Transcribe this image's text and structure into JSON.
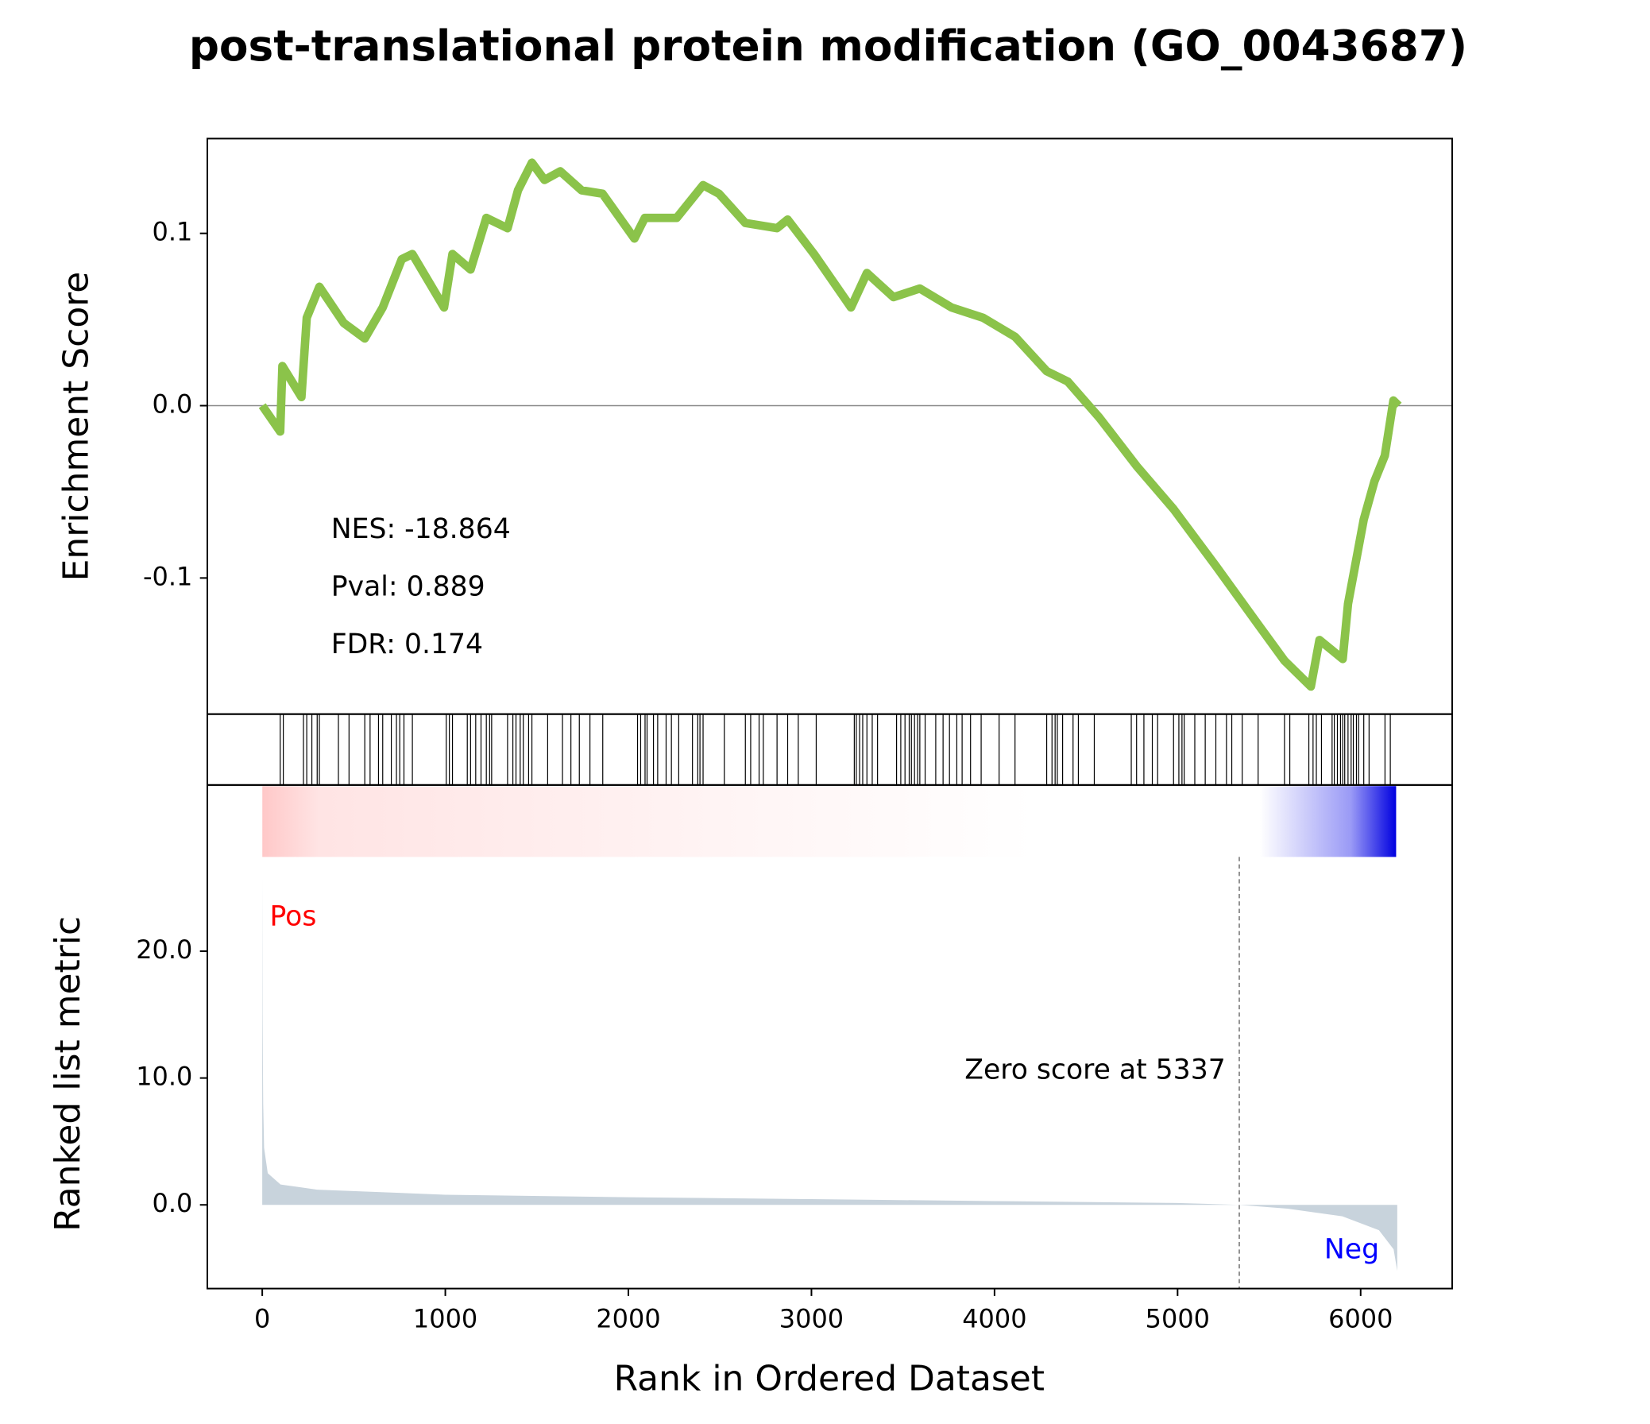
{
  "chart_data": [
    {
      "type": "line",
      "title": "post-translational protein modification (GO_0043687)",
      "ylabel": "Enrichment Score",
      "color": "#8bc34a",
      "x": [
        0,
        98,
        110,
        214,
        243,
        312,
        445,
        560,
        658,
        762,
        820,
        993,
        1039,
        1138,
        1224,
        1340,
        1397,
        1473,
        1542,
        1628,
        1744,
        1859,
        2033,
        2090,
        2264,
        2408,
        2495,
        2639,
        2812,
        2870,
        3014,
        3216,
        3303,
        3448,
        3592,
        3765,
        3938,
        4112,
        4285,
        4400,
        4573,
        4776,
        4978,
        5209,
        5440,
        5584,
        5728,
        5775,
        5902,
        5931,
        6017,
        6075,
        6132,
        6179,
        6208
      ],
      "values": [
        0,
        -0.015,
        0.023,
        0.005,
        0.051,
        0.069,
        0.048,
        0.039,
        0.057,
        0.085,
        0.088,
        0.057,
        0.088,
        0.079,
        0.109,
        0.103,
        0.125,
        0.141,
        0.131,
        0.136,
        0.125,
        0.123,
        0.097,
        0.109,
        0.109,
        0.128,
        0.123,
        0.106,
        0.103,
        0.108,
        0.088,
        0.057,
        0.077,
        0.063,
        0.068,
        0.057,
        0.051,
        0.04,
        0.02,
        0.014,
        -0.007,
        -0.035,
        -0.06,
        -0.093,
        -0.127,
        -0.148,
        -0.163,
        -0.136,
        -0.147,
        -0.115,
        -0.066,
        -0.044,
        -0.029,
        0.003,
        0
      ],
      "xlim": [
        -300,
        6500
      ],
      "ylim": [
        -0.179,
        0.155
      ],
      "yticks": [
        -0.1,
        {
          "value": 0,
          "label": "0.0"
        },
        0.1
      ],
      "annotations": [
        "NES: -18.864",
        "Pval: 0.889",
        "FDR: 0.174"
      ]
    },
    {
      "type": "rug",
      "xlim": [
        -300,
        6500
      ],
      "x": [
        98,
        115,
        225,
        243,
        271,
        300,
        312,
        416,
        474,
        560,
        589,
        635,
        658,
        705,
        733,
        751,
        774,
        820,
        1005,
        1022,
        1039,
        1120,
        1138,
        1166,
        1195,
        1224,
        1242,
        1253,
        1340,
        1369,
        1386,
        1409,
        1426,
        1455,
        1473,
        1559,
        1640,
        1686,
        1732,
        1790,
        1860,
        2050,
        2067,
        2091,
        2102,
        2137,
        2160,
        2206,
        2235,
        2275,
        2350,
        2379,
        2391,
        2408,
        2524,
        2639,
        2668,
        2714,
        2737,
        2812,
        2870,
        2928,
        3026,
        3234,
        3245,
        3263,
        3280,
        3303,
        3332,
        3361,
        3465,
        3488,
        3511,
        3534,
        3546,
        3563,
        3580,
        3592,
        3621,
        3679,
        3719,
        3754,
        3794,
        3823,
        3869,
        3927,
        4025,
        4112,
        4285,
        4314,
        4331,
        4343,
        4372,
        4429,
        4458,
        4545,
        4747,
        4776,
        4816,
        4862,
        4891,
        4978,
        5007,
        5024,
        5036,
        5094,
        5151,
        5209,
        5267,
        5296,
        5353,
        5440,
        5584,
        5613,
        5717,
        5740,
        5758,
        5786,
        5844,
        5856,
        5873,
        5890,
        5902,
        5913,
        5931,
        5948,
        5960,
        5977,
        5989,
        6017,
        6046,
        6133,
        6162
      ]
    },
    {
      "type": "area",
      "ylabel": "Ranked list metric",
      "xlabel": "Rank in Ordered Dataset",
      "color": "#c8d3dc",
      "x": [
        0,
        2,
        5,
        10,
        30,
        100,
        300,
        1000,
        2000,
        3000,
        4000,
        5000,
        5337,
        5600,
        5900,
        6100,
        6180,
        6200
      ],
      "values": [
        25.8,
        15,
        8,
        4.5,
        2.5,
        1.6,
        1.2,
        0.8,
        0.6,
        0.45,
        0.3,
        0.15,
        0,
        -0.3,
        -0.9,
        -2,
        -3.5,
        -5.2
      ],
      "xlim": [
        -300,
        6500
      ],
      "ylim": [
        -6.6,
        33.1
      ],
      "xticks": [
        0,
        1000,
        2000,
        3000,
        4000,
        5000,
        6000
      ],
      "yticks": [
        {
          "value": 0,
          "label": "0.0"
        },
        {
          "value": 10,
          "label": "10.0"
        },
        {
          "value": 20,
          "label": "20.0"
        }
      ],
      "zero_rank": 5337,
      "zero_label": "Zero score at 5337",
      "pos_label": "Pos",
      "pos_color": "#ff0000",
      "neg_label": "Neg",
      "neg_color": "#0000ff"
    }
  ]
}
